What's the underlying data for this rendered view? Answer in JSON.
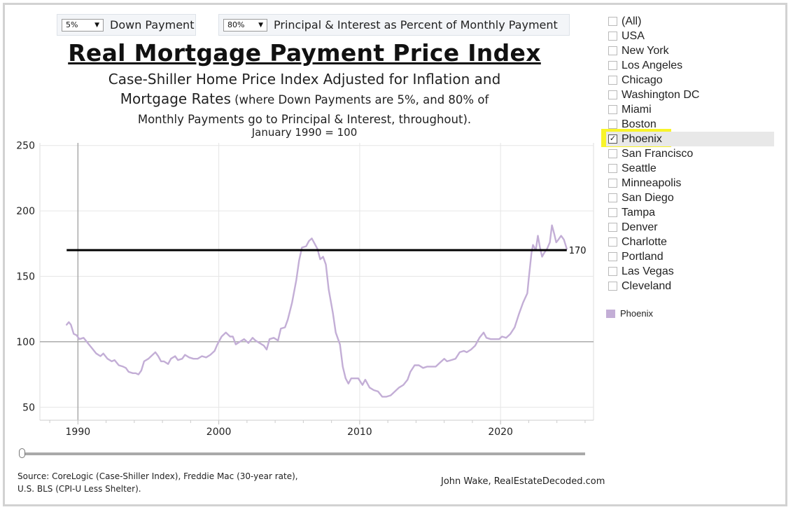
{
  "controls": {
    "down_payment": {
      "value": "5%",
      "label": "Down Payment"
    },
    "pi_percent": {
      "value": "80%",
      "label": "Principal & Interest as Percent of Monthly Payment"
    }
  },
  "header": {
    "title": "Real Mortgage Payment Price Index",
    "subtitle_line1": "Case-Shiller Home Price Index Adjusted for Inflation and",
    "subtitle_line2_main": "Mortgage Rates",
    "subtitle_line2_small": " (where Down Payments are 5%, and 80% of",
    "subtitle_line3": "Monthly Payments go to Principal & Interest, throughout).",
    "base_note": "January 1990 = 100"
  },
  "filters": {
    "items": [
      {
        "label": "(All)",
        "checked": false
      },
      {
        "label": "USA",
        "checked": false
      },
      {
        "label": "New York",
        "checked": false
      },
      {
        "label": "Los Angeles",
        "checked": false
      },
      {
        "label": "Chicago",
        "checked": false
      },
      {
        "label": "Washington DC",
        "checked": false
      },
      {
        "label": "Miami",
        "checked": false
      },
      {
        "label": "Boston",
        "checked": false
      },
      {
        "label": "Phoenix",
        "checked": true
      },
      {
        "label": "San Francisco",
        "checked": false
      },
      {
        "label": "Seattle",
        "checked": false
      },
      {
        "label": "Minneapolis",
        "checked": false
      },
      {
        "label": "San Diego",
        "checked": false
      },
      {
        "label": "Tampa",
        "checked": false
      },
      {
        "label": "Denver",
        "checked": false
      },
      {
        "label": "Charlotte",
        "checked": false
      },
      {
        "label": "Portland",
        "checked": false
      },
      {
        "label": "Las Vegas",
        "checked": false
      },
      {
        "label": "Cleveland",
        "checked": false
      }
    ],
    "check_glyph": "✓"
  },
  "legend": {
    "label": "Phoenix"
  },
  "footer": {
    "source_line1": "Source: CoreLogic (Case-Shiller Index), Freddie Mac (30-year rate),",
    "source_line2": "U.S. BLS (CPI-U Less Shelter).",
    "author": "John Wake, RealEstateDecoded.com"
  },
  "colors": {
    "series": "#c3aed6",
    "reference_line": "#000000",
    "baseline": "#aaaaaa",
    "grid": "#e6e6e6",
    "highlight": "#f8f42a"
  },
  "chart_data": {
    "type": "line",
    "ylim": [
      40,
      252
    ],
    "xlim": [
      1987.3,
      2026.6
    ],
    "x_ticks": [
      1990,
      2000,
      2010,
      2020
    ],
    "y_ticks": [
      50,
      100,
      150,
      200,
      250
    ],
    "baseline_value": 100,
    "reference_line": {
      "value": 170,
      "label": "170",
      "x_start": 1989.2,
      "x_end": 2024.7
    },
    "series": [
      {
        "name": "Phoenix",
        "points": [
          [
            1989.2,
            113
          ],
          [
            1989.35,
            115
          ],
          [
            1989.5,
            113
          ],
          [
            1989.7,
            106
          ],
          [
            1989.9,
            105
          ],
          [
            1990.1,
            102
          ],
          [
            1990.4,
            103
          ],
          [
            1990.7,
            99
          ],
          [
            1991.0,
            95
          ],
          [
            1991.3,
            91
          ],
          [
            1991.6,
            89
          ],
          [
            1991.8,
            91
          ],
          [
            1992.1,
            87
          ],
          [
            1992.4,
            85
          ],
          [
            1992.6,
            86
          ],
          [
            1992.9,
            82
          ],
          [
            1993.2,
            81
          ],
          [
            1993.4,
            80
          ],
          [
            1993.6,
            77
          ],
          [
            1993.9,
            76
          ],
          [
            1994.1,
            76
          ],
          [
            1994.3,
            75
          ],
          [
            1994.5,
            78
          ],
          [
            1994.7,
            85
          ],
          [
            1995.0,
            87
          ],
          [
            1995.3,
            90
          ],
          [
            1995.5,
            92
          ],
          [
            1995.7,
            89
          ],
          [
            1995.9,
            85
          ],
          [
            1996.1,
            85
          ],
          [
            1996.4,
            83
          ],
          [
            1996.6,
            87
          ],
          [
            1996.9,
            89
          ],
          [
            1997.1,
            86
          ],
          [
            1997.4,
            87
          ],
          [
            1997.6,
            90
          ],
          [
            1997.9,
            88
          ],
          [
            1998.2,
            87
          ],
          [
            1998.5,
            87
          ],
          [
            1998.8,
            89
          ],
          [
            1999.1,
            88
          ],
          [
            1999.4,
            90
          ],
          [
            1999.7,
            93
          ],
          [
            1999.9,
            98
          ],
          [
            2000.2,
            104
          ],
          [
            2000.5,
            107
          ],
          [
            2000.8,
            104
          ],
          [
            2001.0,
            104
          ],
          [
            2001.2,
            98
          ],
          [
            2001.5,
            100
          ],
          [
            2001.8,
            102
          ],
          [
            2002.1,
            99
          ],
          [
            2002.4,
            103
          ],
          [
            2002.6,
            101
          ],
          [
            2002.9,
            99
          ],
          [
            2003.2,
            97
          ],
          [
            2003.4,
            94
          ],
          [
            2003.6,
            102
          ],
          [
            2003.9,
            103
          ],
          [
            2004.2,
            101
          ],
          [
            2004.4,
            110
          ],
          [
            2004.7,
            111
          ],
          [
            2004.9,
            117
          ],
          [
            2005.2,
            130
          ],
          [
            2005.5,
            147
          ],
          [
            2005.7,
            162
          ],
          [
            2005.9,
            172
          ],
          [
            2006.2,
            173
          ],
          [
            2006.4,
            177
          ],
          [
            2006.6,
            179
          ],
          [
            2006.8,
            175
          ],
          [
            2007.0,
            171
          ],
          [
            2007.2,
            163
          ],
          [
            2007.4,
            165
          ],
          [
            2007.6,
            159
          ],
          [
            2007.8,
            140
          ],
          [
            2008.1,
            122
          ],
          [
            2008.3,
            107
          ],
          [
            2008.6,
            98
          ],
          [
            2008.8,
            81
          ],
          [
            2009.0,
            72
          ],
          [
            2009.2,
            68
          ],
          [
            2009.4,
            72
          ],
          [
            2009.6,
            72
          ],
          [
            2009.9,
            72
          ],
          [
            2010.2,
            67
          ],
          [
            2010.4,
            71
          ],
          [
            2010.7,
            65
          ],
          [
            2011.0,
            63
          ],
          [
            2011.3,
            62
          ],
          [
            2011.6,
            58
          ],
          [
            2011.9,
            58
          ],
          [
            2012.2,
            59
          ],
          [
            2012.5,
            62
          ],
          [
            2012.8,
            65
          ],
          [
            2013.1,
            67
          ],
          [
            2013.4,
            71
          ],
          [
            2013.6,
            77
          ],
          [
            2013.9,
            82
          ],
          [
            2014.2,
            82
          ],
          [
            2014.5,
            80
          ],
          [
            2014.8,
            81
          ],
          [
            2015.1,
            81
          ],
          [
            2015.4,
            81
          ],
          [
            2015.7,
            84
          ],
          [
            2016.0,
            87
          ],
          [
            2016.2,
            85
          ],
          [
            2016.5,
            86
          ],
          [
            2016.8,
            87
          ],
          [
            2017.1,
            92
          ],
          [
            2017.4,
            93
          ],
          [
            2017.6,
            92
          ],
          [
            2017.9,
            94
          ],
          [
            2018.2,
            97
          ],
          [
            2018.5,
            103
          ],
          [
            2018.8,
            107
          ],
          [
            2019.0,
            103
          ],
          [
            2019.3,
            102
          ],
          [
            2019.6,
            102
          ],
          [
            2019.9,
            102
          ],
          [
            2020.1,
            104
          ],
          [
            2020.4,
            103
          ],
          [
            2020.7,
            106
          ],
          [
            2021.0,
            111
          ],
          [
            2021.3,
            121
          ],
          [
            2021.6,
            130
          ],
          [
            2021.9,
            137
          ],
          [
            2022.0,
            148
          ],
          [
            2022.2,
            168
          ],
          [
            2022.3,
            174
          ],
          [
            2022.5,
            170
          ],
          [
            2022.65,
            181
          ],
          [
            2022.8,
            172
          ],
          [
            2022.95,
            165
          ],
          [
            2023.1,
            168
          ],
          [
            2023.3,
            171
          ],
          [
            2023.5,
            176
          ],
          [
            2023.65,
            189
          ],
          [
            2023.8,
            183
          ],
          [
            2023.95,
            176
          ],
          [
            2024.1,
            178
          ],
          [
            2024.3,
            181
          ],
          [
            2024.5,
            178
          ],
          [
            2024.7,
            171
          ]
        ]
      }
    ]
  }
}
